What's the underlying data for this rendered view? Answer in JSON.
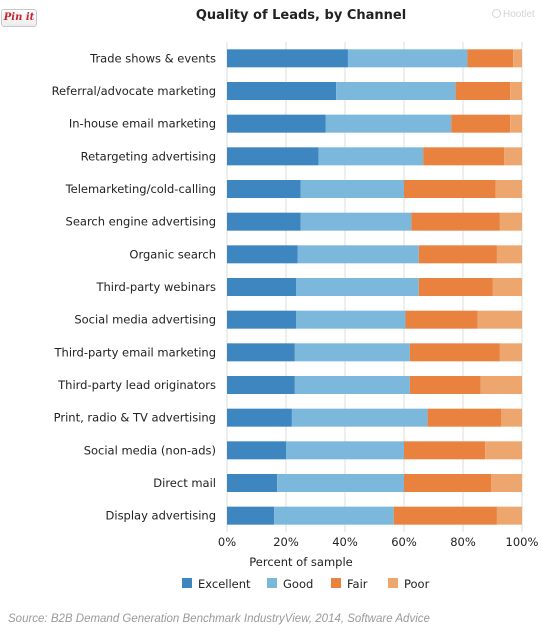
{
  "pin_button": {
    "label": "Pin it"
  },
  "watermark": {
    "label": "Hootlet"
  },
  "source_note": "Source: B2B Demand Generation Benchmark IndustryView, 2014, Software Advice",
  "chart_data": {
    "type": "bar",
    "orientation": "horizontal",
    "stacked": true,
    "title": "Quality of Leads, by Channel",
    "xlabel": "Percent of sample",
    "ylabel": "",
    "xlim": [
      0,
      100
    ],
    "x_ticks": [
      "0%",
      "20%",
      "40%",
      "60%",
      "80%",
      "100%"
    ],
    "grid": true,
    "legend": "bottom",
    "categories": [
      "Trade shows & events",
      "Referral/advocate marketing",
      "In-house email marketing",
      "Retargeting advertising",
      "Telemarketing/cold-calling",
      "Search engine advertising",
      "Organic search",
      "Third-party webinars",
      "Social media advertising",
      "Third-party email marketing",
      "Third-party lead originators",
      "Print, radio & TV advertising",
      "Social media (non-ads)",
      "Direct mail",
      "Display advertising"
    ],
    "series": [
      {
        "name": "Excellent",
        "color": "#3d86c0",
        "values": [
          41,
          37,
          33.5,
          31,
          25,
          25,
          24,
          23.5,
          23.5,
          23,
          23,
          22,
          20,
          17,
          16
        ]
      },
      {
        "name": "Good",
        "color": "#7bb8dc",
        "values": [
          40.5,
          40.5,
          42.5,
          35.5,
          35,
          37.5,
          41,
          41.5,
          37,
          39,
          39,
          46,
          40,
          43,
          40.5
        ]
      },
      {
        "name": "Fair",
        "color": "#e8823e",
        "values": [
          15.5,
          18.5,
          20,
          27.5,
          31,
          30,
          26.5,
          25,
          24.5,
          30.5,
          24,
          25,
          27.5,
          29.5,
          35
        ]
      },
      {
        "name": "Poor",
        "color": "#eda66e",
        "values": [
          3,
          4,
          4,
          6,
          9,
          7.5,
          8.5,
          10,
          15,
          7.5,
          14,
          7,
          12.5,
          10.5,
          8.5
        ]
      }
    ]
  }
}
